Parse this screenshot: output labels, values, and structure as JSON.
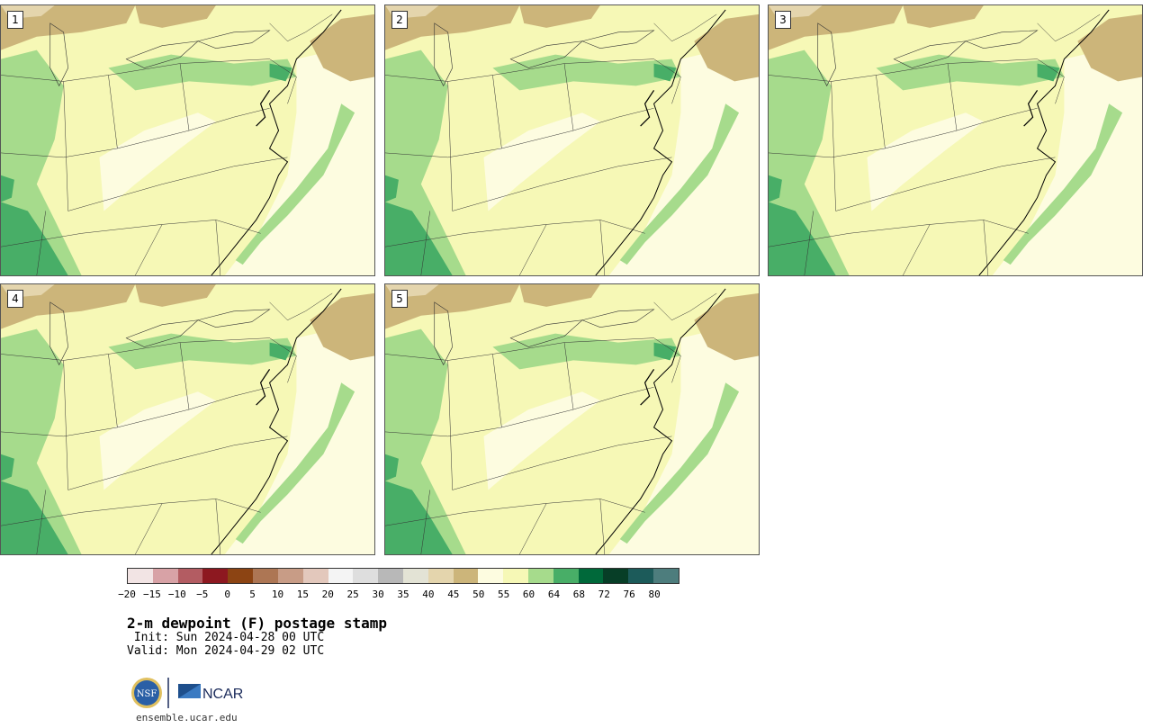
{
  "panels": [
    {
      "label": "1"
    },
    {
      "label": "2"
    },
    {
      "label": "3"
    },
    {
      "label": "4"
    },
    {
      "label": "5"
    }
  ],
  "colorbar": {
    "colors": [
      "#f2e4e4",
      "#d8a2a6",
      "#b35c62",
      "#8d1820",
      "#8c4413",
      "#ad7654",
      "#c89c86",
      "#e3c8bc",
      "#f4f4f4",
      "#dedede",
      "#b8b8b8",
      "#e3e3d5",
      "#e4d5ad",
      "#ccb57a",
      "#fdfce0",
      "#f6f8b6",
      "#a6db8c",
      "#48ae67",
      "#00693a",
      "#073e27",
      "#1c5b5a",
      "#4d7d7d"
    ],
    "ticks": [
      "−20",
      "−15",
      "−10",
      "−5",
      "0",
      "5",
      "10",
      "15",
      "20",
      "25",
      "30",
      "35",
      "40",
      "45",
      "50",
      "55",
      "60",
      "64",
      "68",
      "72",
      "76",
      "80"
    ]
  },
  "title": "2-m dewpoint (F) postage stamp",
  "init": " Init: Sun 2024-04-28 00 UTC",
  "valid": "Valid: Mon 2024-04-29 02 UTC",
  "logo": {
    "nsf_text": "NSF",
    "ncar_text": "NCAR"
  },
  "site": "ensemble.ucar.edu"
}
